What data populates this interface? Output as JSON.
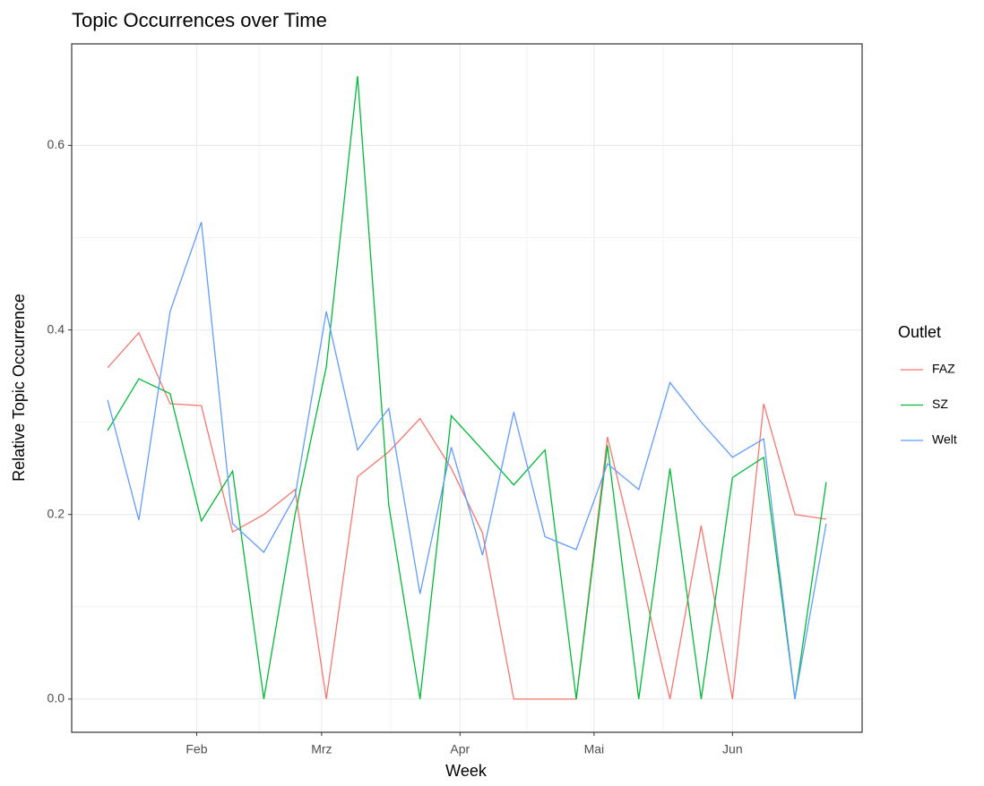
{
  "chart_data": {
    "type": "line",
    "title": "Topic Occurrences over Time",
    "x_label": "Week",
    "y_label": "Relative Topic Occurrence",
    "legend_title": "Outlet",
    "categories": [
      null,
      null,
      null,
      null,
      null,
      null,
      null,
      null,
      null,
      null,
      null,
      null,
      null,
      null,
      null,
      null,
      null,
      null,
      null,
      null,
      null,
      null,
      null,
      null
    ],
    "xlim": [
      -1.15,
      24.15
    ],
    "xticks": [
      {
        "value": 2.85,
        "label": "Feb"
      },
      {
        "value": 6.85,
        "label": "Mrz"
      },
      {
        "value": 11.28,
        "label": "Apr"
      },
      {
        "value": 15.57,
        "label": "Mai"
      },
      {
        "value": 20.0,
        "label": "Jun"
      }
    ],
    "ylim": [
      -0.036,
      0.71
    ],
    "yticks": [
      {
        "value": 0,
        "label": "0.0"
      },
      0.2,
      0.4,
      0.6
    ],
    "grid": true,
    "legend": "right",
    "series": [
      {
        "name": "FAZ",
        "color": "#f8766d",
        "values": [
          0.359,
          0.397,
          0.32,
          0.318,
          0.181,
          0.2,
          0.227,
          0,
          0.241,
          0.268,
          0.304,
          0.25,
          0.18,
          0,
          0,
          0,
          0.284,
          0.143,
          0,
          0.188,
          0,
          0.32,
          0.2,
          0.195
        ]
      },
      {
        "name": "SZ",
        "color": "#00ba38",
        "values": [
          0.291,
          0.347,
          0.331,
          0.193,
          0.247,
          0,
          0.2,
          0.36,
          0.675,
          0.21,
          0,
          0.307,
          0.27,
          0.232,
          0.27,
          0,
          0.275,
          0,
          0.25,
          0,
          0.24,
          0.262,
          0,
          0.235
        ]
      },
      {
        "name": "Welt",
        "color": "#619cff",
        "values": [
          0.324,
          0.194,
          0.42,
          0.517,
          0.19,
          0.159,
          0.22,
          0.42,
          0.27,
          0.315,
          0.114,
          0.273,
          0.156,
          0.311,
          0.176,
          0.162,
          0.255,
          0.227,
          0.343,
          0.3,
          0.262,
          0.282,
          0,
          0.19
        ]
      }
    ]
  }
}
